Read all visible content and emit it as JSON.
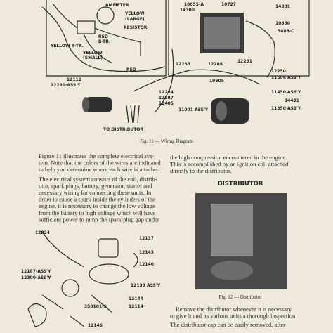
{
  "figure_11": {
    "labels": [
      "AMMETER",
      "YELLOW",
      "(LARGE)",
      "RESISTOR",
      "RED",
      "B-TR.",
      "YELLOW B-TR.",
      "YELLOW",
      "(SMALL)",
      "RED",
      "10655-A",
      "14300",
      "10727",
      "14301",
      "10850",
      "3686-C",
      "12283",
      "12286",
      "12281",
      "12250",
      "11506 ASS'Y",
      "10505",
      "12112",
      "12281-ASS'Y",
      "12284",
      "12287",
      "11450 ASS'Y",
      "12405",
      "14431",
      "11001 ASS'Y",
      "11350 ASS'Y",
      "TO DISTRIBUTOR"
    ],
    "caption": "Fig. 11 — Wiring Diagram"
  },
  "left_column": {
    "paragraphs": [
      [
        "Figure 11 illustrates the complete electrical sys-",
        "tem. Note that the colors of the wires are indicated",
        "to help you determine where each wire is attached."
      ],
      [
        "The electrical system consists of the coil, distrib-",
        "utor, spark plugs, battery, generator, starter and",
        "necessary wiring for connecting these units. In",
        "order to cause a spark inside the cylinders of the",
        "engine, it is necessary to change the low voltage",
        "from the battery to high voltage which will have",
        "sufficient power to jump the spark plug gap under"
      ]
    ]
  },
  "right_column": {
    "top_lines": [
      "the high compression encountered in the engine.",
      "This is accomplished by an ignition coil attached",
      "directly to the distributor."
    ],
    "heading": "DISTRIBUTOR",
    "caption": "Fig. 12 — Distributor",
    "paragraphs": [
      [
        "Remove the distributor whenever it is necessary",
        "to give it and its various units a thorough inspection."
      ],
      [
        "The distributor cap can be easily removed, after"
      ]
    ]
  },
  "parts_diagram": {
    "labels": [
      "12024",
      "12137",
      "12143",
      "12140",
      "12187-ASS'Y",
      "12300-ASS'Y",
      "12139 ASS'Y",
      "12144",
      "350101-S",
      "12114",
      "12146"
    ]
  }
}
